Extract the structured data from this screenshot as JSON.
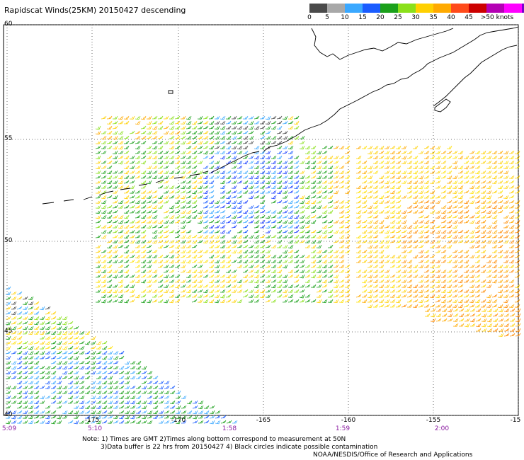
{
  "title": "Rapidscat Winds(25KM) 20150427 descending",
  "legend": {
    "colors": [
      "#4a4a4a",
      "#a8a8a8",
      "#3aa8ff",
      "#1a5cff",
      "#1aa01a",
      "#8ae01a",
      "#ffd000",
      "#ffaa00",
      "#ff4a1a",
      "#cc0000",
      "#b400b4",
      "#ff00ff",
      "#7a00cc"
    ],
    "labels": [
      "0",
      "5",
      "10",
      "15",
      "20",
      "25",
      "30",
      "35",
      "40",
      "45",
      ">50 knots"
    ]
  },
  "axes": {
    "lat_labels": [
      "60",
      "55",
      "50",
      "45",
      "40"
    ],
    "lon_labels": [
      "-175",
      "-170",
      "-165",
      "-160",
      "-155",
      "-15"
    ],
    "time_labels": [
      "5:09",
      "5:10",
      "1:58",
      "1:59",
      "2:00"
    ]
  },
  "notes": {
    "line1": "Note: 1) Times are GMT 2)Times along bottom correspond to measurement at 50N",
    "line2": "3)Data buffer is 22 hrs from 20150427 4) Black circles indicate possible contamination",
    "line3": "NOAA/NESDIS/Office of Research and Applications"
  }
}
